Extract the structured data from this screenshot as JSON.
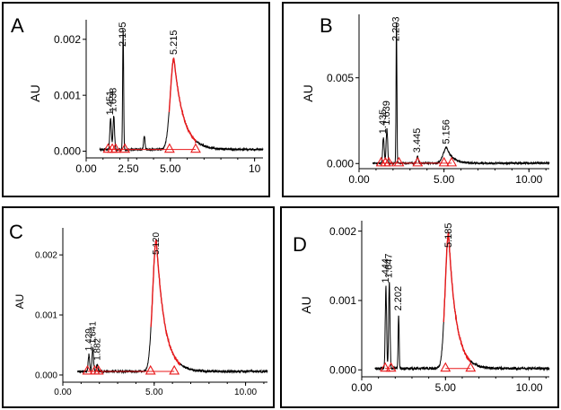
{
  "chart_data": [
    {
      "panel_label": "A",
      "type": "line",
      "ylabel": "AU",
      "xlim": [
        0,
        10.5
      ],
      "ylim": [
        -0.00012,
        0.00235
      ],
      "x_ticks": [
        0,
        2.5,
        5,
        10
      ],
      "x_tick_labels": [
        "0.00",
        "2.50",
        "5.00",
        "10"
      ],
      "y_ticks": [
        0,
        0.001,
        0.002
      ],
      "y_tick_labels": [
        "0.000",
        "0.001",
        "0.002"
      ],
      "colors": {
        "trace": "#000000",
        "integration": "#e8191b"
      },
      "baseline": 3e-05,
      "noise": 1.8e-05,
      "peaks": [
        {
          "rt": 1.451,
          "label": "1.451",
          "height": 0.00055,
          "width": 0.045,
          "integrated": false
        },
        {
          "rt": 1.638,
          "label": "1.638",
          "height": 0.0006,
          "width": 0.045,
          "integrated": false
        },
        {
          "rt": 2.195,
          "label": "2.195",
          "height": 0.00218,
          "width": 0.03,
          "integrated": false
        },
        {
          "rt": 3.45,
          "label": "",
          "height": 0.00025,
          "width": 0.04,
          "integrated": false
        },
        {
          "rt": 5.215,
          "label": "5.215",
          "height": 0.00163,
          "width": 0.22,
          "tail": 0.55,
          "integrated": true
        }
      ],
      "integration_markers": [
        1.3,
        1.55,
        1.75,
        2.3,
        4.95,
        6.5
      ]
    },
    {
      "panel_label": "B",
      "type": "line",
      "ylabel": "AU",
      "xlim": [
        0,
        11.2
      ],
      "ylim": [
        -0.0003,
        0.0087
      ],
      "x_ticks": [
        0,
        5,
        10
      ],
      "x_tick_labels": [
        "0.00",
        "5.00",
        "10.00"
      ],
      "y_ticks": [
        0,
        0.005
      ],
      "y_tick_labels": [
        "0.000",
        "0.005"
      ],
      "colors": {
        "trace": "#000000",
        "integration": "#e8191b"
      },
      "baseline": 2e-05,
      "noise": 5e-05,
      "peaks": [
        {
          "rt": 1.435,
          "label": "1.435",
          "height": 0.0015,
          "width": 0.045,
          "integrated": false
        },
        {
          "rt": 1.639,
          "label": "1.639",
          "height": 0.002,
          "width": 0.045,
          "integrated": false
        },
        {
          "rt": 2.203,
          "label": "2.203",
          "height": 0.0084,
          "width": 0.025,
          "integrated": false
        },
        {
          "rt": 3.445,
          "label": "3.445",
          "height": 0.0004,
          "width": 0.05,
          "integrated": false
        },
        {
          "rt": 5.156,
          "label": "5.156",
          "height": 0.0009,
          "width": 0.2,
          "tail": 0.35,
          "integrated": false
        }
      ],
      "integration_markers": [
        1.3,
        1.55,
        1.75,
        2.35,
        3.45,
        5.0,
        5.45
      ]
    },
    {
      "panel_label": "C",
      "type": "line",
      "ylabel": "AU",
      "xlim": [
        0,
        11.2
      ],
      "ylim": [
        -0.00012,
        0.00245
      ],
      "x_ticks": [
        0,
        5,
        10
      ],
      "x_tick_labels": [
        "0.00",
        "5.00",
        "10.00"
      ],
      "y_ticks": [
        0,
        0.001,
        0.002
      ],
      "y_tick_labels": [
        "0.000",
        "0.001",
        "0.002"
      ],
      "colors": {
        "trace": "#000000",
        "integration": "#e8191b"
      },
      "baseline": 6e-05,
      "noise": 2e-05,
      "peaks": [
        {
          "rt": 1.429,
          "label": "1.429",
          "height": 0.00028,
          "width": 0.04,
          "integrated": false
        },
        {
          "rt": 1.641,
          "label": "1.641",
          "height": 0.0004,
          "width": 0.04,
          "integrated": false
        },
        {
          "rt": 1.882,
          "label": "1.882",
          "height": 0.00012,
          "width": 0.04,
          "integrated": false
        },
        {
          "rt": 5.12,
          "label": "5.120",
          "height": 0.0022,
          "width": 0.2,
          "tail": 0.45,
          "integrated": true
        }
      ],
      "integration_markers": [
        1.35,
        1.75,
        1.95,
        4.8,
        6.1
      ]
    },
    {
      "panel_label": "D",
      "type": "line",
      "ylabel": "AU",
      "xlim": [
        0,
        11.2
      ],
      "ylim": [
        -0.0001,
        0.00215
      ],
      "x_ticks": [
        0,
        5,
        10
      ],
      "x_tick_labels": [
        "0.00",
        "5.00",
        "10.00"
      ],
      "y_ticks": [
        0,
        0.001,
        0.002
      ],
      "y_tick_labels": [
        "0.000",
        "0.001",
        "0.002"
      ],
      "colors": {
        "trace": "#000000",
        "integration": "#e8191b"
      },
      "baseline": 2e-05,
      "noise": 1.8e-05,
      "peaks": [
        {
          "rt": 1.444,
          "label": "1.444",
          "height": 0.00118,
          "width": 0.04,
          "integrated": false
        },
        {
          "rt": 1.647,
          "label": "1.647",
          "height": 0.00125,
          "width": 0.04,
          "integrated": false
        },
        {
          "rt": 2.202,
          "label": "2.202",
          "height": 0.00078,
          "width": 0.03,
          "integrated": false
        },
        {
          "rt": 5.185,
          "label": "5.185",
          "height": 0.00195,
          "width": 0.2,
          "tail": 0.45,
          "integrated": true
        }
      ],
      "integration_markers": [
        1.4,
        1.75,
        5.0,
        6.5
      ]
    }
  ]
}
